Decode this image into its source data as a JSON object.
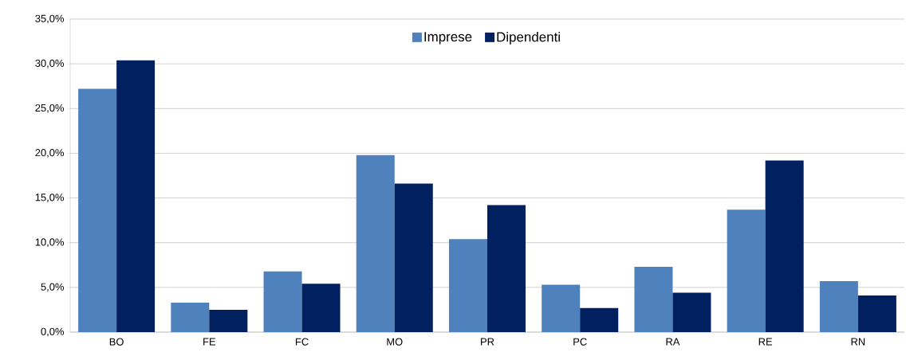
{
  "chart_data": {
    "type": "bar",
    "categories": [
      "BO",
      "FE",
      "FC",
      "MO",
      "PR",
      "PC",
      "RA",
      "RE",
      "RN"
    ],
    "series": [
      {
        "name": "Imprese",
        "color": "#4f81bd",
        "values": [
          27.2,
          3.3,
          6.8,
          19.8,
          10.4,
          5.3,
          7.3,
          13.7,
          5.7
        ]
      },
      {
        "name": "Dipendenti",
        "color": "#002060",
        "values": [
          30.4,
          2.5,
          5.4,
          16.6,
          14.2,
          2.7,
          4.4,
          19.2,
          4.1
        ]
      }
    ],
    "ylim": [
      0,
      35
    ],
    "yticks": [
      {
        "value": 0,
        "label": "0,0%"
      },
      {
        "value": 5,
        "label": "5,0%"
      },
      {
        "value": 10,
        "label": "10,0%"
      },
      {
        "value": 15,
        "label": "15,0%"
      },
      {
        "value": 20,
        "label": "20,0%"
      },
      {
        "value": 25,
        "label": "25,0%"
      },
      {
        "value": 30,
        "label": "30,0%"
      },
      {
        "value": 35,
        "label": "35,0%"
      }
    ],
    "grid": "y",
    "legend": "top"
  }
}
